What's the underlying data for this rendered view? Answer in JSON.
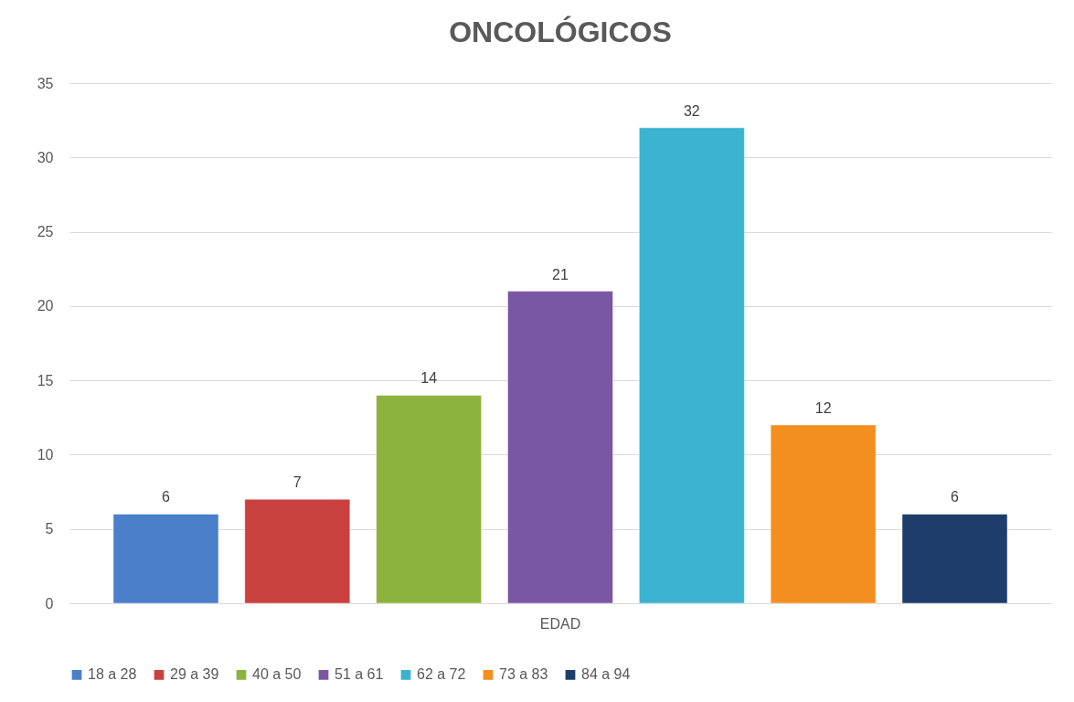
{
  "chart_data": {
    "type": "bar",
    "title": "ONCOLÓGICOS",
    "categories": [
      "EDAD"
    ],
    "series": [
      {
        "name": "18 a 28",
        "color": "#4a7fc9",
        "values": [
          6
        ]
      },
      {
        "name": "29 a 39",
        "color": "#c9413f",
        "values": [
          7
        ]
      },
      {
        "name": "40 a 50",
        "color": "#8cb33e",
        "values": [
          14
        ]
      },
      {
        "name": "51 a 61",
        "color": "#7a57a3",
        "values": [
          21
        ]
      },
      {
        "name": "62 a 72",
        "color": "#3bb3d1",
        "values": [
          32
        ]
      },
      {
        "name": "73 a 83",
        "color": "#f38f1e",
        "values": [
          12
        ]
      },
      {
        "name": "84 a 94",
        "color": "#1f3d6b",
        "values": [
          6
        ]
      }
    ],
    "ylim": [
      0,
      35
    ],
    "yticks": [
      0,
      5,
      10,
      15,
      20,
      25,
      30,
      35
    ],
    "grid": "y",
    "legend": "bottom",
    "data_labels": true
  }
}
